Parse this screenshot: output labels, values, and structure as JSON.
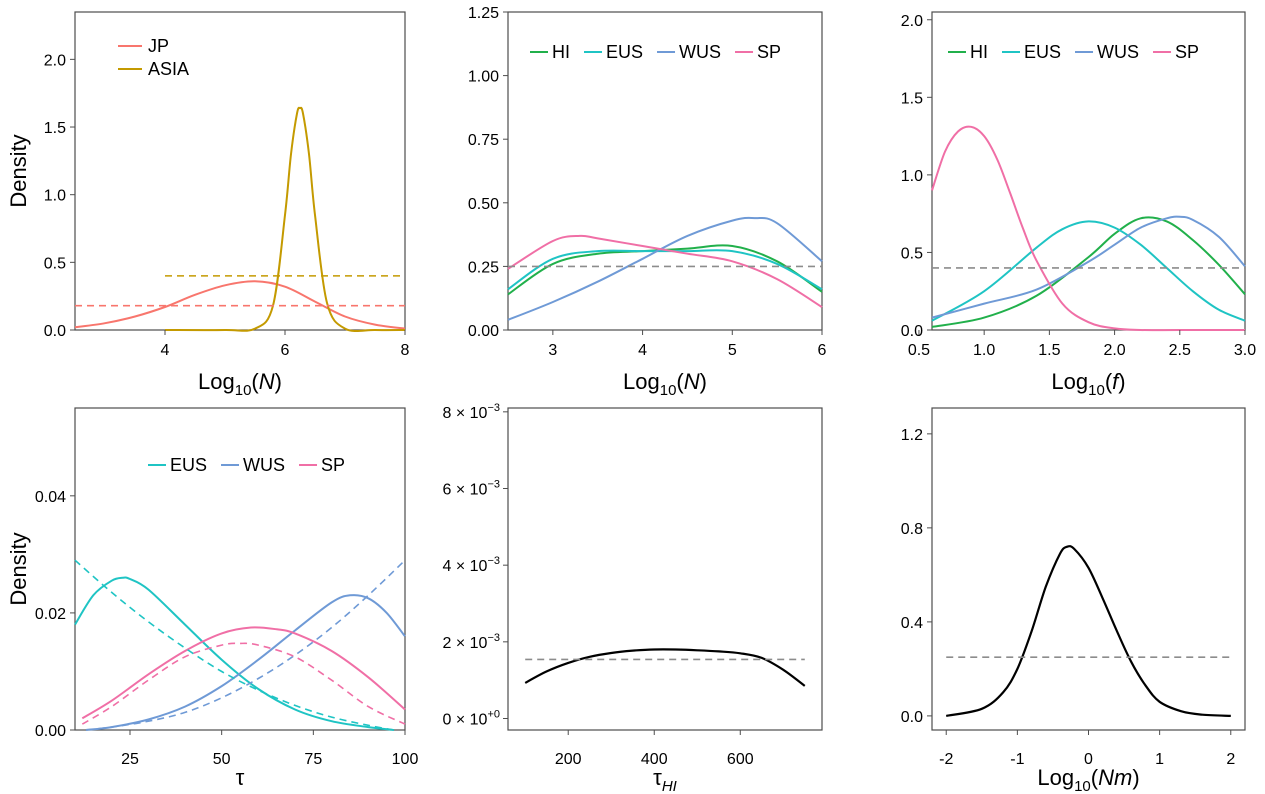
{
  "colors": {
    "JP": "#F8766D",
    "ASIA": "#C49A00",
    "HI": "#21B04B",
    "EUS": "#1FC4C4",
    "WUS": "#6F9AD6",
    "SP": "#F06FA6",
    "black": "#000000",
    "prior_grey": "#8C8C8C"
  },
  "chart_data": [
    {
      "type": "line",
      "xlabel": "Log10(N)",
      "ylabel": "Density",
      "xlim": [
        2.5,
        8
      ],
      "ylim": [
        0,
        2.35
      ],
      "xticks": [
        {
          "value": 4,
          "label": "4"
        },
        {
          "value": 6,
          "label": "6"
        },
        {
          "value": 8,
          "label": "8"
        }
      ],
      "yticks": [
        {
          "value": 0,
          "label": "0.0"
        },
        {
          "value": 0.5,
          "label": "0.5"
        },
        {
          "value": 1.0,
          "label": "1.0"
        },
        {
          "value": 1.5,
          "label": "1.5"
        },
        {
          "value": 2.0,
          "label": "2.0"
        }
      ],
      "legend": {
        "position": "top-left",
        "layout": "vertical",
        "entries": [
          "JP",
          "ASIA"
        ]
      },
      "series": [
        {
          "name": "JP",
          "color_key": "JP",
          "dashed": false,
          "x": [
            2.5,
            3.0,
            3.5,
            4.0,
            4.5,
            5.0,
            5.5,
            6.0,
            6.5,
            7.0,
            7.5,
            8.0
          ],
          "y": [
            0.02,
            0.05,
            0.1,
            0.17,
            0.26,
            0.33,
            0.36,
            0.32,
            0.21,
            0.1,
            0.04,
            0.01
          ]
        },
        {
          "name": "ASIA",
          "color_key": "ASIA",
          "dashed": false,
          "x": [
            4.0,
            5.0,
            5.5,
            5.8,
            6.0,
            6.1,
            6.2,
            6.25,
            6.3,
            6.4,
            6.5,
            6.7,
            7.0,
            7.5,
            8.0
          ],
          "y": [
            0.0,
            0.0,
            0.01,
            0.18,
            0.85,
            1.3,
            1.6,
            1.64,
            1.6,
            1.3,
            0.85,
            0.2,
            0.01,
            0.0,
            0.0
          ]
        },
        {
          "name": "JP prior",
          "color_key": "JP",
          "dashed": true,
          "x": [
            2.5,
            8.0
          ],
          "y": [
            0.18,
            0.18
          ]
        },
        {
          "name": "ASIA prior",
          "color_key": "ASIA",
          "dashed": true,
          "x": [
            4.0,
            8.0
          ],
          "y": [
            0.4,
            0.4
          ]
        }
      ]
    },
    {
      "type": "line",
      "xlabel": "Log10(N)",
      "ylabel": "",
      "xlim": [
        2.5,
        6
      ],
      "ylim": [
        0,
        1.25
      ],
      "xticks": [
        {
          "value": 3,
          "label": "3"
        },
        {
          "value": 4,
          "label": "4"
        },
        {
          "value": 5,
          "label": "5"
        },
        {
          "value": 6,
          "label": "6"
        }
      ],
      "yticks": [
        {
          "value": 0,
          "label": "0.00"
        },
        {
          "value": 0.25,
          "label": "0.25"
        },
        {
          "value": 0.5,
          "label": "0.50"
        },
        {
          "value": 0.75,
          "label": "0.75"
        },
        {
          "value": 1.0,
          "label": "1.00"
        },
        {
          "value": 1.25,
          "label": "1.25"
        }
      ],
      "legend": {
        "position": "top-center",
        "layout": "horizontal",
        "entries": [
          "HI",
          "EUS",
          "WUS",
          "SP"
        ]
      },
      "series": [
        {
          "name": "HI",
          "color_key": "HI",
          "dashed": false,
          "x": [
            2.5,
            3.0,
            3.5,
            4.0,
            4.5,
            5.0,
            5.5,
            6.0
          ],
          "y": [
            0.14,
            0.26,
            0.3,
            0.31,
            0.32,
            0.33,
            0.27,
            0.15
          ]
        },
        {
          "name": "EUS",
          "color_key": "EUS",
          "dashed": false,
          "x": [
            2.5,
            3.0,
            3.5,
            4.0,
            4.5,
            5.0,
            5.5,
            6.0
          ],
          "y": [
            0.16,
            0.28,
            0.31,
            0.31,
            0.31,
            0.31,
            0.26,
            0.16
          ]
        },
        {
          "name": "WUS",
          "color_key": "WUS",
          "dashed": false,
          "x": [
            2.5,
            3.0,
            3.5,
            4.0,
            4.5,
            5.0,
            5.25,
            5.5,
            6.0
          ],
          "y": [
            0.04,
            0.11,
            0.19,
            0.28,
            0.37,
            0.43,
            0.44,
            0.42,
            0.27
          ]
        },
        {
          "name": "SP",
          "color_key": "SP",
          "dashed": false,
          "x": [
            2.5,
            3.0,
            3.3,
            3.5,
            4.0,
            4.5,
            5.0,
            5.5,
            6.0
          ],
          "y": [
            0.24,
            0.35,
            0.37,
            0.36,
            0.33,
            0.3,
            0.27,
            0.2,
            0.09
          ]
        },
        {
          "name": "prior",
          "color_key": "prior_grey",
          "dashed": true,
          "x": [
            2.5,
            6.0
          ],
          "y": [
            0.25,
            0.25
          ]
        }
      ]
    },
    {
      "type": "line",
      "xlabel": "Log10(f)",
      "ylabel": "",
      "xlim": [
        0.6,
        3.0
      ],
      "ylim": [
        0,
        2.05
      ],
      "xticks": [
        {
          "value": 0.5,
          "label": "0.5"
        },
        {
          "value": 1.0,
          "label": "1.0"
        },
        {
          "value": 1.5,
          "label": "1.5"
        },
        {
          "value": 2.0,
          "label": "2.0"
        },
        {
          "value": 2.5,
          "label": "2.5"
        },
        {
          "value": 3.0,
          "label": "3.0"
        }
      ],
      "yticks": [
        {
          "value": 0,
          "label": "0.0"
        },
        {
          "value": 0.5,
          "label": "0.5"
        },
        {
          "value": 1.0,
          "label": "1.0"
        },
        {
          "value": 1.5,
          "label": "1.5"
        },
        {
          "value": 2.0,
          "label": "2.0"
        }
      ],
      "legend": {
        "position": "top-center",
        "layout": "horizontal",
        "entries": [
          "HI",
          "EUS",
          "WUS",
          "SP"
        ]
      },
      "series": [
        {
          "name": "HI",
          "color_key": "HI",
          "dashed": false,
          "x": [
            0.6,
            1.0,
            1.4,
            1.8,
            2.0,
            2.2,
            2.4,
            2.6,
            2.8,
            3.0
          ],
          "y": [
            0.02,
            0.08,
            0.22,
            0.47,
            0.62,
            0.72,
            0.7,
            0.58,
            0.42,
            0.23
          ]
        },
        {
          "name": "EUS",
          "color_key": "EUS",
          "dashed": false,
          "x": [
            0.6,
            1.0,
            1.4,
            1.6,
            1.8,
            2.0,
            2.2,
            2.4,
            2.6,
            2.8,
            3.0
          ],
          "y": [
            0.06,
            0.25,
            0.53,
            0.65,
            0.7,
            0.66,
            0.55,
            0.4,
            0.25,
            0.13,
            0.06
          ]
        },
        {
          "name": "WUS",
          "color_key": "WUS",
          "dashed": false,
          "x": [
            0.6,
            1.0,
            1.4,
            1.8,
            2.0,
            2.2,
            2.4,
            2.5,
            2.6,
            2.8,
            3.0
          ],
          "y": [
            0.08,
            0.17,
            0.26,
            0.44,
            0.55,
            0.66,
            0.72,
            0.73,
            0.71,
            0.6,
            0.41
          ]
        },
        {
          "name": "SP",
          "color_key": "SP",
          "dashed": false,
          "x": [
            0.6,
            0.7,
            0.8,
            0.9,
            1.0,
            1.1,
            1.2,
            1.3,
            1.4,
            1.6,
            1.8,
            2.0,
            2.2,
            2.5,
            3.0
          ],
          "y": [
            0.9,
            1.15,
            1.28,
            1.31,
            1.25,
            1.1,
            0.88,
            0.65,
            0.45,
            0.17,
            0.05,
            0.01,
            0.0,
            0.0,
            0.0
          ]
        },
        {
          "name": "prior",
          "color_key": "prior_grey",
          "dashed": true,
          "x": [
            0.6,
            3.0
          ],
          "y": [
            0.4,
            0.4
          ]
        }
      ]
    },
    {
      "type": "line",
      "xlabel": "τ",
      "ylabel": "Density",
      "xlim": [
        10,
        100
      ],
      "ylim": [
        0,
        0.055
      ],
      "xticks": [
        {
          "value": 25,
          "label": "25"
        },
        {
          "value": 50,
          "label": "50"
        },
        {
          "value": 75,
          "label": "75"
        },
        {
          "value": 100,
          "label": "100"
        }
      ],
      "yticks": [
        {
          "value": 0,
          "label": "0.00"
        },
        {
          "value": 0.02,
          "label": "0.02"
        },
        {
          "value": 0.04,
          "label": "0.04"
        }
      ],
      "legend": {
        "position": "top-center",
        "layout": "horizontal",
        "entries": [
          "EUS",
          "WUS",
          "SP"
        ]
      },
      "series": [
        {
          "name": "EUS",
          "color_key": "EUS",
          "dashed": false,
          "x": [
            10,
            15,
            20,
            23,
            25,
            30,
            40,
            50,
            60,
            70,
            80,
            90,
            97
          ],
          "y": [
            0.018,
            0.023,
            0.0255,
            0.026,
            0.0258,
            0.024,
            0.018,
            0.012,
            0.007,
            0.0035,
            0.0015,
            0.0005,
            0.0
          ]
        },
        {
          "name": "WUS",
          "color_key": "WUS",
          "dashed": false,
          "x": [
            13,
            20,
            30,
            40,
            50,
            60,
            70,
            80,
            85,
            90,
            95,
            100
          ],
          "y": [
            0.0,
            0.0005,
            0.0018,
            0.004,
            0.0075,
            0.012,
            0.017,
            0.0218,
            0.023,
            0.0225,
            0.02,
            0.016
          ]
        },
        {
          "name": "SP",
          "color_key": "SP",
          "dashed": false,
          "x": [
            12,
            20,
            30,
            40,
            50,
            58,
            65,
            70,
            80,
            90,
            100
          ],
          "y": [
            0.002,
            0.005,
            0.0095,
            0.0135,
            0.0165,
            0.0175,
            0.0172,
            0.0165,
            0.0135,
            0.009,
            0.0035
          ]
        },
        {
          "name": "EUS prior",
          "color_key": "EUS",
          "dashed": true,
          "x": [
            10,
            20,
            30,
            40,
            50,
            60,
            70,
            80,
            90,
            97
          ],
          "y": [
            0.029,
            0.0235,
            0.0185,
            0.014,
            0.01,
            0.0068,
            0.0042,
            0.0022,
            0.0008,
            0.0
          ]
        },
        {
          "name": "WUS prior",
          "color_key": "WUS",
          "dashed": true,
          "x": [
            13,
            20,
            30,
            40,
            50,
            60,
            70,
            80,
            90,
            100
          ],
          "y": [
            0.0,
            0.0005,
            0.0015,
            0.003,
            0.0055,
            0.0088,
            0.0128,
            0.0175,
            0.023,
            0.029
          ]
        },
        {
          "name": "SP prior",
          "color_key": "SP",
          "dashed": true,
          "x": [
            12,
            20,
            30,
            40,
            50,
            55,
            60,
            70,
            80,
            90,
            100
          ],
          "y": [
            0.001,
            0.004,
            0.0085,
            0.0125,
            0.0145,
            0.0148,
            0.0145,
            0.0125,
            0.0085,
            0.004,
            0.001
          ]
        }
      ]
    },
    {
      "type": "line",
      "xlabel": "τHI",
      "ylabel": "",
      "xlim": [
        60,
        790
      ],
      "ylim": [
        -0.0003,
        0.0081
      ],
      "xticks": [
        {
          "value": 200,
          "label": "200"
        },
        {
          "value": 400,
          "label": "400"
        },
        {
          "value": 600,
          "label": "600"
        }
      ],
      "yticks": [
        {
          "value": 0,
          "mantissa": "0",
          "exponent": "+0"
        },
        {
          "value": 0.002,
          "mantissa": "2",
          "exponent": "−3"
        },
        {
          "value": 0.004,
          "mantissa": "4",
          "exponent": "−3"
        },
        {
          "value": 0.006,
          "mantissa": "6",
          "exponent": "−3"
        },
        {
          "value": 0.008,
          "mantissa": "8",
          "exponent": "−3"
        }
      ],
      "series": [
        {
          "name": "posterior",
          "color_key": "black",
          "dashed": false,
          "x": [
            100,
            150,
            200,
            250,
            300,
            350,
            400,
            450,
            500,
            550,
            600,
            650,
            700,
            750
          ],
          "y": [
            0.00093,
            0.00123,
            0.00145,
            0.00161,
            0.00171,
            0.00177,
            0.0018,
            0.0018,
            0.00178,
            0.00175,
            0.0017,
            0.00158,
            0.00127,
            0.00085
          ]
        },
        {
          "name": "prior",
          "color_key": "prior_grey",
          "dashed": true,
          "x": [
            100,
            750
          ],
          "y": [
            0.00154,
            0.00154
          ]
        }
      ]
    },
    {
      "type": "line",
      "xlabel": "Log10(Nm)",
      "ylabel": "",
      "xlim": [
        -2.2,
        2.2
      ],
      "ylim": [
        -0.06,
        1.31
      ],
      "xticks": [
        {
          "value": -2,
          "label": "-2"
        },
        {
          "value": -1,
          "label": "-1"
        },
        {
          "value": 0,
          "label": "0"
        },
        {
          "value": 1,
          "label": "1"
        },
        {
          "value": 2,
          "label": "2"
        }
      ],
      "yticks": [
        {
          "value": 0,
          "label": "0.0"
        },
        {
          "value": 0.4,
          "label": "0.4"
        },
        {
          "value": 0.8,
          "label": "0.8"
        },
        {
          "value": 1.2,
          "label": "1.2"
        }
      ],
      "series": [
        {
          "name": "posterior",
          "color_key": "black",
          "dashed": false,
          "x": [
            -2.0,
            -1.5,
            -1.2,
            -1.0,
            -0.8,
            -0.6,
            -0.4,
            -0.3,
            -0.2,
            0.0,
            0.2,
            0.4,
            0.6,
            0.8,
            1.0,
            1.3,
            1.6,
            2.0
          ],
          "y": [
            0.0,
            0.03,
            0.1,
            0.2,
            0.36,
            0.55,
            0.69,
            0.72,
            0.71,
            0.63,
            0.5,
            0.36,
            0.23,
            0.13,
            0.06,
            0.02,
            0.005,
            0.0
          ]
        },
        {
          "name": "prior",
          "color_key": "prior_grey",
          "dashed": true,
          "x": [
            -2.0,
            2.0
          ],
          "y": [
            0.25,
            0.25
          ]
        }
      ]
    }
  ]
}
